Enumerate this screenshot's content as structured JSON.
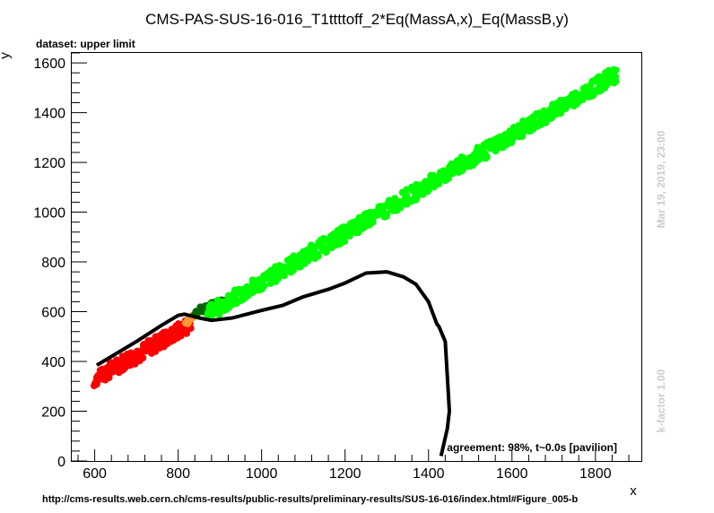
{
  "title": "CMS-PAS-SUS-16-016_T1ttttoff_2*Eq(MassA,x)_Eq(MassB,y)",
  "dataset_label": "dataset: upper limit",
  "agreement_text": "agreement: 98%, t~0.0s [pavilion]",
  "date_text": "Mar 19, 2019, 23:00",
  "kfactor_text": "k-factor 1.00",
  "url_text": "http://cms-results.web.cern.ch/cms-results/public-results/preliminary-results/SUS-16-016/index.html#Figure_005-b",
  "chart_data": {
    "type": "scatter",
    "title": "CMS-PAS-SUS-16-016_T1ttttoff_2*Eq(MassA,x)_Eq(MassB,y)",
    "xlabel": "x",
    "ylabel": "y",
    "xlim": [
      545,
      1910
    ],
    "ylim": [
      0,
      1640
    ],
    "xticks": [
      600,
      800,
      1000,
      1200,
      1400,
      1600,
      1800
    ],
    "yticks": [
      0,
      200,
      400,
      600,
      800,
      1000,
      1200,
      1400,
      1600
    ],
    "colors": {
      "bright_green": "#00ff00",
      "dark_green": "#006400",
      "orange": "#ff9933",
      "red": "#ff0000",
      "exclusion_line": "#000000"
    },
    "point_bands": [
      {
        "color": "red",
        "x": [
          600,
          620
        ],
        "y": [
          310,
          370
        ],
        "spread": 10
      },
      {
        "color": "red",
        "x": [
          620,
          830
        ],
        "y": [
          350,
          550
        ],
        "spread": 32
      },
      {
        "color": "orange",
        "x": [
          820,
          850
        ],
        "y": [
          555,
          605
        ],
        "spread": 8
      },
      {
        "color": "dark_green",
        "x": [
          840,
          930
        ],
        "y": [
          600,
          650
        ],
        "spread": 15
      },
      {
        "color": "bright_green",
        "x": [
          870,
          1850
        ],
        "y": [
          590,
          1555
        ],
        "spread": 30
      }
    ],
    "exclusion_line": {
      "x": [
        605,
        640,
        700,
        760,
        800,
        815,
        850,
        880,
        930,
        1000,
        1050,
        1100,
        1160,
        1200,
        1250,
        1300,
        1340,
        1370,
        1400,
        1420,
        1425,
        1440,
        1450,
        1445,
        1430
      ],
      "y": [
        385,
        420,
        480,
        545,
        585,
        590,
        575,
        565,
        575,
        605,
        625,
        660,
        690,
        715,
        755,
        760,
        740,
        710,
        640,
        550,
        540,
        480,
        200,
        130,
        20
      ]
    }
  }
}
